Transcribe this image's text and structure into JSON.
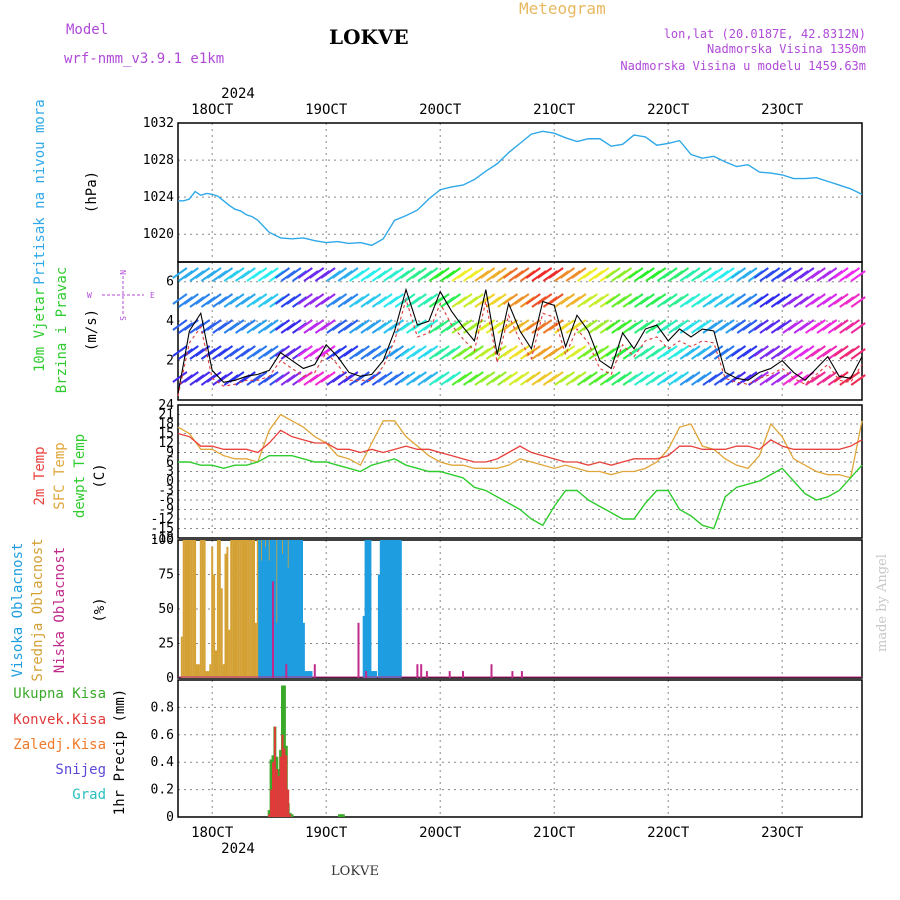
{
  "header": {
    "model_label": "Model",
    "model_name": "wrf-nmm_v3.9.1 e1km",
    "station": "LOKVE",
    "title": "Meteogram",
    "coords": "lon,lat (20.0187E, 42.8312N)",
    "elevation": "Nadmorska Visina 1350m",
    "model_elevation": "Nadmorska Visina u modelu 1459.63m",
    "year": "2024",
    "footer_station": "LOKVE",
    "credit": "made by Angel"
  },
  "colors": {
    "pressure": "#2fa8e8",
    "temp2m": "#e8413c",
    "sfc_temp": "#e0a63a",
    "dewpt": "#2fcc2f",
    "high_cloud": "#1e9ee0",
    "mid_cloud": "#d4a135",
    "low_cloud": "#c02a8a",
    "precip_total": "#3aaa2a",
    "precip_conv": "#e03a3a",
    "frozen": "#f07a2a",
    "snow": "#5a4ad8",
    "hail": "#2ac0c0",
    "purple_label": "#b04ad8",
    "orange_label": "#e8b860",
    "credit": "#c8c8c8"
  },
  "chart_data": [
    {
      "type": "line",
      "name": "pressure",
      "ylabels": [
        "Pritisak na nivou mora",
        "(hPa)"
      ],
      "ylim": [
        1017,
        1032
      ],
      "yticks": [
        1020,
        1024,
        1028,
        1032
      ],
      "x_top_ticks": [
        "18OCT",
        "19OCT",
        "20OCT",
        "21OCT",
        "22OCT",
        "23OCT"
      ],
      "x_bottom_ticks": [
        "18OCT",
        "19OCT",
        "20OCT",
        "21OCT",
        "22OCT",
        "23OCT"
      ],
      "x_hours": [
        0,
        6,
        12,
        18,
        24,
        30,
        36,
        42,
        48,
        54,
        60,
        66,
        72,
        78,
        84,
        96,
        108,
        120,
        132,
        144,
        156,
        168,
        180,
        192,
        204,
        216,
        228,
        240,
        252,
        264,
        276,
        288,
        300,
        312,
        324,
        336,
        348,
        360,
        372,
        384,
        396,
        408,
        420,
        432,
        444,
        456,
        468,
        480,
        492,
        504,
        516,
        528,
        540,
        552,
        564,
        576,
        588,
        600,
        612,
        624,
        636,
        648,
        660,
        672,
        684,
        696,
        708,
        720
      ],
      "series": [
        {
          "values": [
            1023.6,
            1023.6,
            1023.8,
            1024.6,
            1024.2,
            1024.4,
            1024.3,
            1024.1,
            1023.6,
            1023.1,
            1022.7,
            1022.5,
            1022.1,
            1021.9,
            1021.5,
            1020.2,
            1019.6,
            1019.5,
            1019.6,
            1019.3,
            1019.1,
            1019.2,
            1019.0,
            1019.1,
            1018.8,
            1019.5,
            1021.5,
            1022.0,
            1022.6,
            1023.8,
            1024.8,
            1025.1,
            1025.3,
            1025.9,
            1026.8,
            1027.6,
            1028.8,
            1029.8,
            1030.8,
            1031.1,
            1030.9,
            1030.4,
            1030.0,
            1030.3,
            1030.3,
            1029.5,
            1029.7,
            1030.7,
            1030.5,
            1029.6,
            1029.8,
            1030.1,
            1028.6,
            1028.2,
            1028.4,
            1027.8,
            1027.3,
            1027.5,
            1026.7,
            1026.6,
            1026.4,
            1026.0,
            1026.0,
            1026.1,
            1025.7,
            1025.3,
            1024.9,
            1024.3
          ]
        }
      ]
    },
    {
      "type": "line",
      "name": "wind",
      "ylabels": [
        "10m Vjetar",
        "Brzina i Pravac",
        "(m/s)"
      ],
      "direction_legend": [
        "W",
        "E",
        "N",
        "S"
      ],
      "ylim": [
        0,
        7
      ],
      "yticks": [
        2,
        4,
        6
      ],
      "x_hours": [
        0,
        12,
        24,
        36,
        48,
        60,
        72,
        84,
        96,
        108,
        120,
        132,
        144,
        156,
        168,
        180,
        192,
        204,
        216,
        228,
        240,
        252,
        264,
        276,
        288,
        300,
        312,
        324,
        336,
        348,
        360,
        372,
        384,
        396,
        408,
        420,
        432,
        444,
        456,
        468,
        480,
        492,
        504,
        516,
        528,
        540,
        552,
        564,
        576,
        588,
        600,
        612,
        624,
        636,
        648,
        660,
        672,
        684,
        696,
        708,
        720
      ],
      "series": [
        {
          "values": [
            0.3,
            3.5,
            4.4,
            1.5,
            0.9,
            1.0,
            1.2,
            1.3,
            1.5,
            2.4,
            2.0,
            1.6,
            1.8,
            2.8,
            2.2,
            1.4,
            1.2,
            1.3,
            2.0,
            3.5,
            5.6,
            3.8,
            4.0,
            5.5,
            4.5,
            3.7,
            3.0,
            5.6,
            2.3,
            4.9,
            3.5,
            2.6,
            5.0,
            4.8,
            2.7,
            4.3,
            3.5,
            2.0,
            1.6,
            3.4,
            2.6,
            3.6,
            3.8,
            3.0,
            3.6,
            3.2,
            3.6,
            3.5,
            1.4,
            1.1,
            1.0,
            1.4,
            1.6,
            2.0,
            1.4,
            1.0,
            1.6,
            2.2,
            1.2,
            1.1,
            2.2
          ]
        },
        {
          "values": [
            0.2,
            2.9,
            3.7,
            1.1,
            0.7,
            0.8,
            1.0,
            1.0,
            1.2,
            2.0,
            1.6,
            1.2,
            1.4,
            2.4,
            1.8,
            1.0,
            1.0,
            1.0,
            1.7,
            3.0,
            5.1,
            3.2,
            3.4,
            4.9,
            3.8,
            3.1,
            2.5,
            5.0,
            1.9,
            4.3,
            3.0,
            2.1,
            4.4,
            4.2,
            2.3,
            3.6,
            2.9,
            1.6,
            1.3,
            2.8,
            2.2,
            3.0,
            3.2,
            2.6,
            3.0,
            2.7,
            3.0,
            2.9,
            1.1,
            0.9,
            0.8,
            1.1,
            1.3,
            1.6,
            1.1,
            0.8,
            1.3,
            1.8,
            1.0,
            0.9,
            1.8
          ]
        }
      ]
    },
    {
      "type": "line",
      "name": "temperature",
      "ylabels": [
        "2m Temp",
        "SFC Temp",
        "dewpt Temp",
        "(C)"
      ],
      "ylim": [
        -18,
        24
      ],
      "yticks": [
        -18,
        -15,
        -12,
        -9,
        -6,
        -3,
        0,
        3,
        6,
        9,
        12,
        15,
        18,
        21,
        24
      ],
      "x_hours": [
        0,
        12,
        24,
        36,
        48,
        60,
        72,
        84,
        96,
        108,
        120,
        132,
        144,
        156,
        168,
        180,
        192,
        204,
        216,
        228,
        240,
        252,
        264,
        276,
        288,
        300,
        312,
        324,
        336,
        348,
        360,
        372,
        384,
        396,
        408,
        420,
        432,
        444,
        456,
        468,
        480,
        492,
        504,
        516,
        528,
        540,
        552,
        564,
        576,
        588,
        600,
        612,
        624,
        636,
        648,
        660,
        672,
        684,
        696,
        708,
        720
      ],
      "series": [
        {
          "values": [
            15,
            14,
            11,
            11,
            10,
            10,
            10,
            9,
            12,
            16,
            14,
            13,
            12,
            12,
            10,
            10,
            9,
            10,
            9,
            10,
            11,
            10,
            10,
            9,
            8,
            7,
            6,
            6,
            7,
            9,
            11,
            9,
            8,
            7,
            6,
            6,
            5,
            6,
            5,
            6,
            7,
            7,
            7,
            8,
            11,
            11,
            10,
            10,
            10,
            11,
            11,
            10,
            13,
            11,
            10,
            10,
            10,
            10,
            10,
            11,
            13
          ]
        },
        {
          "values": [
            17,
            15,
            10,
            10,
            8,
            7,
            7,
            6,
            16,
            21,
            19,
            17,
            14,
            12,
            8,
            7,
            5,
            12,
            19,
            19,
            14,
            11,
            8,
            6,
            5,
            5,
            4,
            4,
            4,
            5,
            7,
            6,
            5,
            4,
            5,
            4,
            3,
            3,
            2,
            3,
            3,
            4,
            6,
            10,
            17,
            18,
            11,
            10,
            7,
            5,
            4,
            8,
            18,
            14,
            7,
            5,
            3,
            2,
            2,
            1,
            19
          ]
        },
        {
          "values": [
            6,
            6,
            5,
            5,
            4,
            5,
            5,
            6,
            8,
            8,
            8,
            7,
            6,
            6,
            5,
            4,
            3,
            5,
            6,
            7,
            5,
            4,
            3,
            3,
            2,
            1,
            -2,
            -3,
            -5,
            -7,
            -9,
            -12,
            -14,
            -8,
            -3,
            -3,
            -6,
            -8,
            -10,
            -12,
            -12,
            -7,
            -3,
            -3,
            -9,
            -11,
            -14,
            -15,
            -5,
            -2,
            -1,
            0,
            2,
            4,
            0,
            -4,
            -6,
            -5,
            -3,
            1,
            5
          ]
        }
      ]
    },
    {
      "type": "bar",
      "name": "cloud",
      "ylabels": [
        "Visoka Oblacnost",
        "Srednja Oblacnost",
        "Niska Oblacnost",
        "(%)"
      ],
      "ylim": [
        0,
        100
      ],
      "yticks": [
        0,
        25,
        50,
        75,
        100
      ],
      "series": [
        {
          "name": "Visoka Oblacnost",
          "x_hours": [
            86,
            88,
            90,
            92,
            94,
            96,
            98,
            100,
            102,
            104,
            106,
            108,
            110,
            112,
            114,
            116,
            118,
            120,
            122,
            124,
            126,
            128,
            130,
            132,
            134,
            136,
            138,
            140,
            196,
            198,
            200,
            202,
            204,
            206,
            208,
            212,
            214,
            216,
            218,
            220,
            222,
            224,
            226,
            228,
            230,
            232,
            234
          ],
          "values": [
            100,
            85,
            100,
            95,
            100,
            85,
            100,
            100,
            100,
            40,
            100,
            100,
            90,
            100,
            100,
            80,
            100,
            100,
            100,
            100,
            100,
            100,
            100,
            40,
            5,
            5,
            5,
            5,
            45,
            100,
            100,
            100,
            5,
            5,
            5,
            75,
            100,
            100,
            100,
            100,
            100,
            100,
            100,
            100,
            100,
            100,
            100
          ]
        },
        {
          "name": "Srednja Oblacnost",
          "x_hours": [
            4,
            6,
            8,
            10,
            12,
            14,
            16,
            18,
            20,
            22,
            24,
            26,
            28,
            30,
            32,
            34,
            36,
            38,
            40,
            42,
            44,
            46,
            48,
            50,
            52,
            54,
            56,
            58,
            60,
            62,
            64,
            66,
            68,
            70,
            72,
            74,
            76,
            78,
            80,
            82,
            84,
            86,
            88,
            90,
            92,
            94,
            96,
            98,
            100,
            102,
            104,
            106,
            108,
            110,
            112,
            114,
            116,
            118,
            120,
            122,
            124,
            126,
            128
          ],
          "values": [
            30,
            100,
            100,
            100,
            100,
            100,
            100,
            100,
            10,
            10,
            100,
            100,
            100,
            5,
            5,
            10,
            95,
            75,
            20,
            100,
            100,
            65,
            10,
            90,
            95,
            35,
            100,
            100,
            100,
            100,
            100,
            100,
            100,
            100,
            100,
            100,
            100,
            100,
            100,
            40,
            100,
            60,
            100,
            90,
            100,
            70,
            100,
            100,
            100,
            50,
            100,
            80,
            100,
            100,
            80,
            100,
            100,
            100,
            100,
            100,
            100,
            100,
            100
          ]
        },
        {
          "name": "Niska Oblacnost",
          "x_hours": [
            100,
            114,
            144,
            190,
            198,
            252,
            256,
            262,
            286,
            300,
            330,
            352,
            362
          ],
          "values": [
            70,
            10,
            10,
            40,
            5,
            10,
            10,
            5,
            5,
            5,
            10,
            5,
            5
          ]
        }
      ]
    },
    {
      "type": "bar",
      "name": "precipitation",
      "ylabels": [
        "1hr Precip (mm)"
      ],
      "legend": [
        "Ukupna Kisa",
        "Konvek.Kisa",
        "Zaledj.Kisa",
        "Snijeg",
        "Grad"
      ],
      "ylim": [
        0,
        1.0
      ],
      "yticks": [
        0,
        0.2,
        0.4,
        0.6,
        0.8
      ],
      "series": [
        {
          "name": "Ukupna Kisa",
          "x_hours": [
            96,
            98,
            100,
            102,
            104,
            106,
            108,
            110,
            112,
            114,
            116,
            118,
            120,
            170,
            172,
            174
          ],
          "values": [
            0.05,
            0.42,
            0.45,
            0.66,
            0.44,
            0.35,
            0.49,
            0.96,
            0.96,
            0.52,
            0.1,
            0.03,
            0.02,
            0.02,
            0.02,
            0.02
          ]
        },
        {
          "name": "Konvek.Kisa",
          "x_hours": [
            96,
            98,
            100,
            102,
            104,
            106,
            108,
            110,
            112,
            114,
            116,
            118
          ],
          "values": [
            0.02,
            0.2,
            0.4,
            0.66,
            0.35,
            0.3,
            0.44,
            0.6,
            0.5,
            0.45,
            0.2,
            0.02
          ]
        }
      ]
    }
  ]
}
